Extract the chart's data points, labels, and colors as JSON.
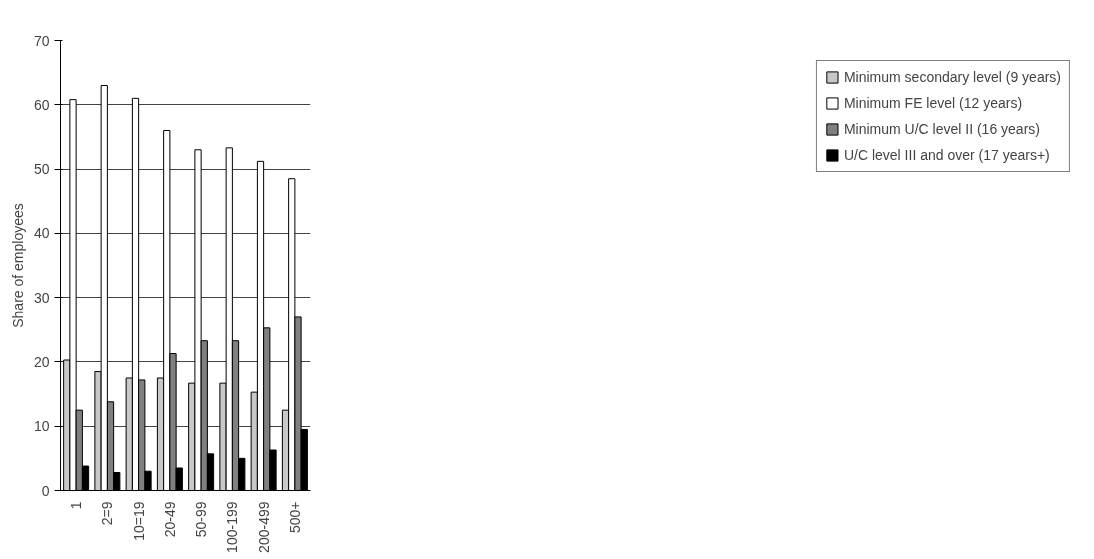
{
  "chart_data": {
    "type": "bar",
    "ylabel": "Share of employees",
    "categories": [
      "1",
      "2=9",
      "10=19",
      "20-49",
      "50-99",
      "100-199",
      "200-499",
      "500+"
    ],
    "series": [
      {
        "name": "Minimum secondary level (9 years)",
        "color": "#c8c8c8",
        "values": [
          20.3,
          18.5,
          17.5,
          17.5,
          16.7,
          16.7,
          15.3,
          12.5
        ]
      },
      {
        "name": "Minimum FE level (12 years)",
        "color": "#ffffff",
        "values": [
          60.8,
          63,
          61,
          56,
          53,
          53.3,
          51.2,
          48.5
        ]
      },
      {
        "name": "Minimum U/C level II (16 years)",
        "color": "#808080",
        "values": [
          12.5,
          13.8,
          17.2,
          21.3,
          23.3,
          23.3,
          25.3,
          27
        ]
      },
      {
        "name": "U/C level III and over (17 years+)",
        "color": "#000000",
        "values": [
          3.8,
          2.8,
          3.0,
          3.5,
          5.7,
          5.0,
          6.3,
          9.5
        ]
      }
    ],
    "ylim": [
      0,
      70
    ],
    "yticks": [
      0,
      10,
      20,
      30,
      40,
      50,
      60,
      70
    ],
    "grid": "y",
    "legend": "right"
  }
}
